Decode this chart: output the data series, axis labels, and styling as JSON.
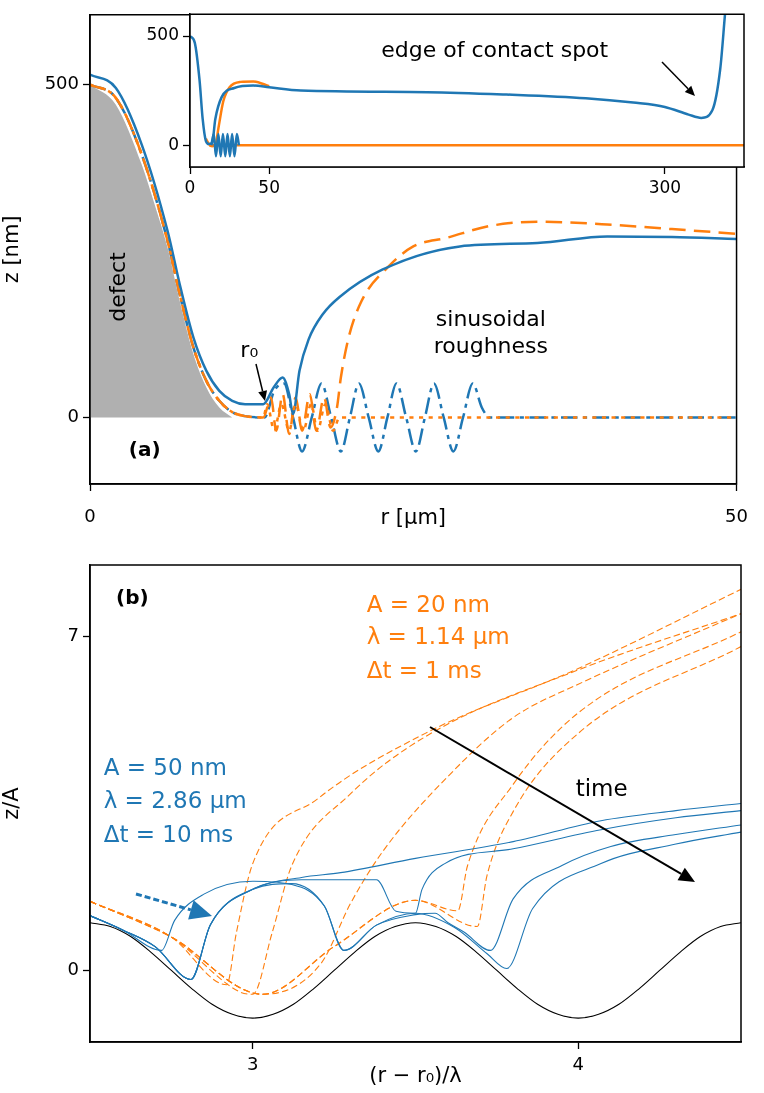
{
  "chart_data": [
    {
      "type": "line",
      "xlabel": "r [µm]",
      "ylabel": "z [nm]",
      "xlim": [
        0,
        50
      ],
      "ylim": [
        -100,
        605
      ],
      "xticks": [
        0,
        50
      ],
      "yticks": [
        0,
        500
      ],
      "annotations": [
        "defect",
        {
          "text": "r₀",
          "x": 13.4,
          "y": 22
        },
        "sinusoidal roughness",
        "(a)"
      ],
      "series": [
        {
          "type": "area",
          "color": "#b0b0b0",
          "x": [
            0,
            2,
            4,
            5,
            6,
            7,
            8,
            9,
            10,
            11
          ],
          "values": [
            500,
            470,
            380,
            320,
            255,
            170,
            95,
            45,
            15,
            0
          ]
        },
        {
          "type": "line",
          "color": "#1f77b4",
          "line_style": "dashdot",
          "x": [
            0,
            2,
            4,
            6,
            7,
            8,
            9,
            10,
            11,
            12,
            13.5,
            14.25,
            15,
            15.7,
            16.4,
            17.15,
            17.9,
            18.65,
            19.4,
            20.1,
            20.8,
            21.55,
            22.3,
            23,
            23.7,
            24.45,
            25.2,
            25.9,
            26.6,
            27.35,
            28.1,
            28.85,
            29.6,
            30.3,
            30.9,
            50
          ],
          "values": [
            500,
            480,
            395,
            265,
            180,
            105,
            55,
            25,
            8,
            2,
            0,
            40,
            51,
            0,
            -51,
            0,
            51,
            0,
            -51,
            0,
            51,
            0,
            -51,
            0,
            51,
            0,
            -51,
            0,
            51,
            0,
            -51,
            0,
            51,
            15,
            0,
            0
          ]
        },
        {
          "type": "line",
          "color": "#ff7f0e",
          "line_style": "dashed",
          "x": [
            0,
            2,
            4,
            6,
            7,
            8,
            9,
            10,
            11,
            12,
            13.4,
            14,
            14.4,
            14.9,
            15.4,
            15.9,
            16.4,
            17,
            17.5,
            18.1,
            18.6,
            19.1,
            19.4,
            20,
            21,
            23,
            25,
            27.6,
            31,
            34.6,
            40,
            45,
            50
          ],
          "values": [
            500,
            480,
            395,
            265,
            180,
            105,
            55,
            25,
            8,
            2,
            0,
            30,
            -20,
            35,
            -25,
            30,
            -20,
            35,
            -20,
            30,
            -15,
            15,
            60,
            120,
            175,
            225,
            257,
            270,
            288,
            294,
            290,
            283,
            276
          ]
        },
        {
          "type": "line",
          "color": "#1f77b4",
          "line_style": "solid",
          "x": [
            0,
            2,
            4,
            6,
            7,
            8,
            9,
            10,
            11,
            12,
            13.4,
            14.2,
            14.9,
            15.4,
            15.7,
            16.2,
            16.9,
            18,
            19.3,
            22.6,
            28.6,
            34.6,
            40,
            45,
            50
          ],
          "values": [
            515,
            495,
            410,
            280,
            195,
            120,
            70,
            40,
            25,
            20,
            20,
            45,
            60,
            35,
            5,
            70,
            117,
            155,
            181,
            222,
            257,
            262,
            272,
            271,
            268
          ]
        },
        {
          "type": "line",
          "color": "#ff7f0e",
          "line_style": "dotted",
          "x": [
            0,
            2,
            4,
            6,
            7,
            8,
            9,
            10,
            11,
            12,
            13.4,
            13.7,
            14.25,
            14.8,
            15.4,
            15.9,
            16.5,
            17.1,
            17.6,
            18.2,
            18.8,
            19.3,
            50
          ],
          "values": [
            500,
            480,
            395,
            265,
            180,
            105,
            55,
            25,
            8,
            2,
            0,
            20,
            -20,
            20,
            -20,
            20,
            -20,
            20,
            -20,
            20,
            -20,
            0,
            0
          ]
        }
      ]
    },
    {
      "type": "line",
      "xlim": [
        0,
        350
      ],
      "ylim": [
        -100,
        600
      ],
      "xticks": [
        0,
        50,
        300
      ],
      "yticks": [
        0,
        500
      ],
      "annotations": [
        "edge of contact spot"
      ],
      "series": [
        {
          "type": "line",
          "color": "#ff7f0e",
          "line_style": "solid",
          "x": [
            12,
            350
          ],
          "values": [
            0,
            0
          ]
        },
        {
          "type": "line",
          "color": "#ff7f0e",
          "line_style": "solid",
          "x": [
            10,
            12,
            14,
            16,
            18,
            21,
            25,
            32,
            40,
            50
          ],
          "values": [
            30,
            5,
            -5,
            0,
            80,
            200,
            265,
            290,
            292,
            270
          ]
        },
        {
          "type": "line",
          "color": "#1f77b4",
          "line_style": "solid",
          "x": [
            13.5,
            15,
            16.4,
            17.9,
            19.4,
            20.8,
            22.3,
            23.7,
            25.2,
            26.6,
            28.1,
            29.6,
            30.9
          ],
          "values": [
            0,
            51,
            -51,
            51,
            -51,
            51,
            -51,
            51,
            -51,
            51,
            -51,
            51,
            0
          ]
        },
        {
          "type": "line",
          "color": "#1f77b4",
          "line_style": "solid",
          "x": [
            0,
            3,
            6,
            8,
            10,
            12,
            14,
            16,
            20,
            28,
            40,
            50,
            70,
            150,
            200,
            250,
            280,
            300,
            315,
            323,
            330,
            335,
            338
          ],
          "values": [
            500,
            470,
            300,
            120,
            20,
            5,
            10,
            120,
            220,
            262,
            273,
            265,
            250,
            243,
            232,
            215,
            195,
            175,
            140,
            125,
            160,
            350,
            600
          ]
        }
      ]
    },
    {
      "type": "line",
      "xlabel": "(r − r₀)/λ",
      "ylabel": "z/A",
      "xlim": [
        2.5,
        4.5
      ],
      "ylim": [
        -1.5,
        8.5
      ],
      "xticks": [
        3,
        4
      ],
      "yticks": [
        0,
        7
      ],
      "annotations": [
        "(b)",
        "A = 20 nm",
        "λ = 1.14 µm",
        "Δt = 1 ms",
        "A = 50 nm",
        "λ = 2.86 µm",
        "Δt = 10 ms",
        "time"
      ],
      "series": [
        {
          "type": "line",
          "color": "#000000",
          "line_style": "solid",
          "x": [
            2.5,
            2.5625,
            2.625,
            2.6875,
            2.75,
            2.8125,
            2.875,
            2.9375,
            3,
            3.0625,
            3.125,
            3.1875,
            3.25,
            3.3125,
            3.375,
            3.4375,
            3.5,
            3.5625,
            3.625,
            3.6875,
            3.75,
            3.8125,
            3.875,
            3.9375,
            4,
            4.0625,
            4.125,
            4.1875,
            4.25,
            4.3125,
            4.375,
            4.4375,
            4.5
          ],
          "values": [
            1,
            0.92,
            0.71,
            0.38,
            0,
            -0.38,
            -0.71,
            -0.92,
            -1,
            -0.92,
            -0.71,
            -0.38,
            0,
            0.38,
            0.71,
            0.92,
            1,
            0.92,
            0.71,
            0.38,
            0,
            -0.38,
            -0.71,
            -0.92,
            -1,
            -0.92,
            -0.71,
            -0.38,
            0,
            0.38,
            0.71,
            0.92,
            1
          ]
        },
        {
          "type": "line",
          "color": "#ff7f0e",
          "line_style": "dashed",
          "x": [
            2.5,
            2.75,
            2.92,
            2.95,
            3,
            3.2,
            3.53,
            4,
            4.5
          ],
          "values": [
            1.45,
            0.7,
            -0.3,
            0.8,
            2.24,
            3.6,
            4.97,
            6.33,
            7.99
          ]
        },
        {
          "type": "line",
          "color": "#ff7f0e",
          "line_style": "dashed",
          "x": [
            2.5,
            2.75,
            2.96,
            3,
            3.06,
            3.12,
            3.3,
            3.53,
            4,
            4.5
          ],
          "values": [
            1.45,
            0.7,
            -0.45,
            -0.5,
            0.8,
            2.2,
            3.7,
            4.9,
            6.3,
            7.48
          ]
        },
        {
          "type": "line",
          "color": "#ff7f0e",
          "line_style": "dashed",
          "x": [
            2.5,
            2.75,
            3.03,
            3.21,
            3.3,
            3.4,
            3.6,
            3.8,
            4,
            4.5
          ],
          "values": [
            1.45,
            0.7,
            -0.5,
            0.15,
            1.4,
            2.5,
            4.07,
            5.3,
            6,
            7.48
          ]
        },
        {
          "type": "line",
          "color": "#ff7f0e",
          "line_style": "dashed",
          "x": [
            2.5,
            2.75,
            3.03,
            3.25,
            3.5,
            3.63,
            3.66,
            3.8,
            4,
            4.5
          ],
          "values": [
            1.45,
            0.7,
            -0.5,
            0.5,
            1.47,
            1.25,
            2.2,
            3.9,
            5.4,
            7.1
          ]
        },
        {
          "type": "line",
          "color": "#ff7f0e",
          "line_style": "dashed",
          "x": [
            2.5,
            2.75,
            3.03,
            3.25,
            3.5,
            3.69,
            3.72,
            3.8,
            4,
            4.5
          ],
          "values": [
            1.45,
            0.7,
            -0.5,
            0.5,
            1.47,
            0.92,
            2,
            3.33,
            4.97,
            6.79
          ]
        },
        {
          "type": "line",
          "color": "#1f77b4",
          "line_style": "solid",
          "x": [
            2.5,
            2.6,
            2.72,
            2.76,
            2.85,
            3,
            3.12,
            3.22,
            3.28,
            3.38,
            3.5,
            3.56,
            3.6,
            3.65,
            3.73,
            3.8,
            3.95,
            4.1,
            4.3,
            4.5
          ],
          "values": [
            1.15,
            0.85,
            0.42,
            1.05,
            1.6,
            1.87,
            1.8,
            1.35,
            0.42,
            0.95,
            1.17,
            1.2,
            1,
            0.8,
            0.42,
            1.5,
            2.2,
            2.6,
            2.85,
            3.05
          ]
        },
        {
          "type": "line",
          "color": "#1f77b4",
          "line_style": "solid",
          "x": [
            2.5,
            2.6,
            2.7,
            2.81,
            2.87,
            3,
            3.15,
            3.27,
            3.5,
            3.8,
            4.07,
            4.3,
            4.5
          ],
          "values": [
            1.15,
            0.85,
            0.5,
            -0.19,
            0.96,
            1.7,
            1.95,
            2.05,
            2.35,
            2.7,
            3.14,
            3.35,
            3.5
          ]
        },
        {
          "type": "line",
          "color": "#1f77b4",
          "line_style": "solid",
          "x": [
            2.5,
            2.6,
            2.7,
            2.81,
            2.87,
            3,
            3.15,
            3.38,
            3.44,
            3.5,
            3.52,
            3.59,
            3.8,
            4.07,
            4.3,
            4.5
          ],
          "values": [
            1.15,
            0.85,
            0.5,
            -0.19,
            0.96,
            1.7,
            1.9,
            1.9,
            1.24,
            1.2,
            1.7,
            2.24,
            2.55,
            2.95,
            3.2,
            3.35
          ]
        },
        {
          "type": "line",
          "color": "#1f77b4",
          "line_style": "solid",
          "x": [
            2.5,
            2.6,
            2.7,
            2.81,
            2.87,
            3,
            3.12,
            3.22,
            3.28,
            3.38,
            3.5,
            3.62,
            3.72,
            3.78,
            3.86,
            4.07,
            4.3,
            4.5
          ],
          "values": [
            1.15,
            0.85,
            0.5,
            -0.19,
            0.96,
            1.7,
            1.82,
            1.35,
            0.42,
            0.95,
            1.2,
            0.9,
            0.35,
            0.04,
            1.3,
            2.24,
            2.65,
            2.9
          ]
        }
      ]
    }
  ]
}
